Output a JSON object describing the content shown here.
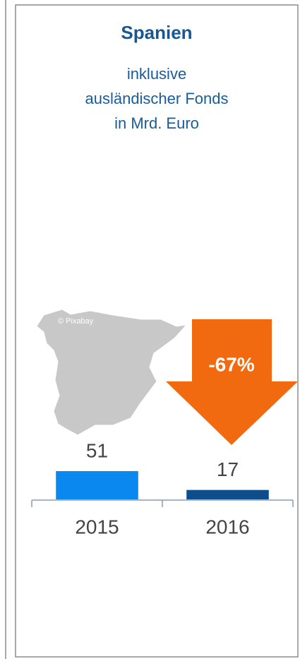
{
  "chart_data": {
    "type": "bar",
    "title": "Spanien",
    "subtitle": [
      "inklusive",
      "ausländischer Fonds",
      "in Mrd. Euro"
    ],
    "categories": [
      "2015",
      "2016"
    ],
    "values": [
      51,
      17
    ],
    "colors": [
      "#0a88f0",
      "#0d4d8c"
    ],
    "annotation": "-67%",
    "credit": "© Pixabay"
  }
}
